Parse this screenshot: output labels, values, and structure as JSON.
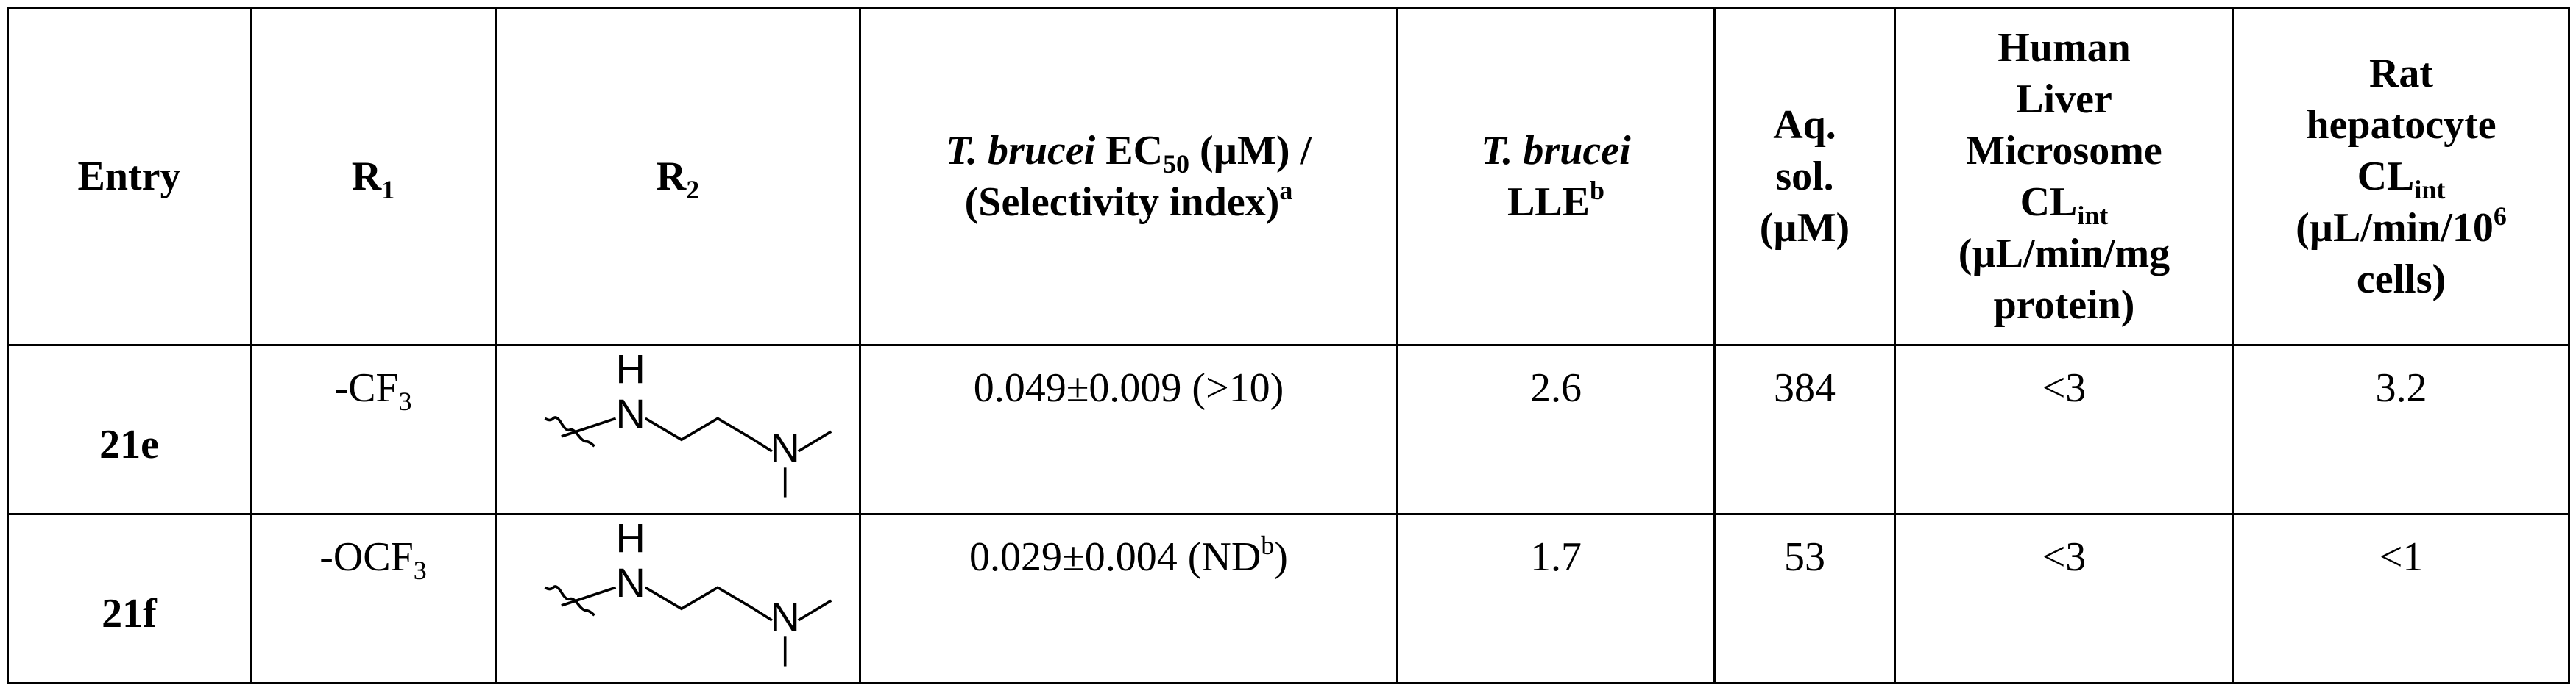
{
  "table": {
    "header": [
      [
        "Entry"
      ],
      [
        "R",
        "1"
      ],
      [
        "R",
        "2"
      ],
      [
        "T. brucei",
        " EC",
        "50",
        " (µM) /",
        "(Selectivity index)",
        "a"
      ],
      [
        "T. brucei",
        "LLE",
        "b"
      ],
      [
        "Aq.",
        "sol.",
        "(µM)"
      ],
      [
        "Human",
        "Liver",
        "Microsome",
        "CL",
        "int",
        "(µL/min/mg",
        "protein)"
      ],
      [
        "Rat",
        "hepatocyte",
        "CL",
        "int",
        "(µL/min/10",
        "6",
        "cells)"
      ]
    ],
    "rows": [
      {
        "entry": "21e",
        "r1": [
          "-CF",
          "3"
        ],
        "r2_atoms": [
          "H",
          "N",
          "N"
        ],
        "ec50": [
          "0.049±0.009 (>10)"
        ],
        "lle": "2.6",
        "solubility": "384",
        "hlm": "<3",
        "rat": "3.2"
      },
      {
        "entry": "21f",
        "r1": [
          "-OCF",
          "3"
        ],
        "r2_atoms": [
          "H",
          "N",
          "N"
        ],
        "ec50": [
          "0.029±0.004 (ND",
          "b",
          ")"
        ],
        "lle": "1.7",
        "solubility": "53",
        "hlm": "<3",
        "rat": "<1"
      }
    ]
  }
}
